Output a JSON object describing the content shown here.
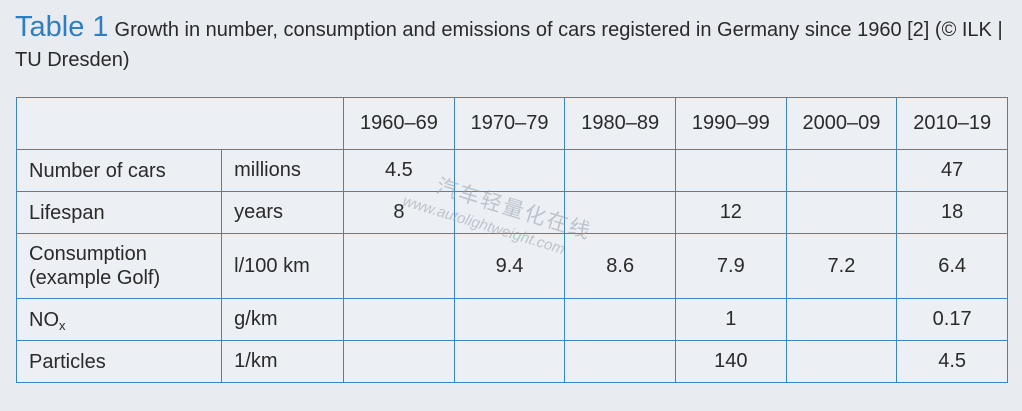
{
  "caption": {
    "label": "Table 1",
    "text": "Growth in number, consumption and emissions of cars registered in Germany since 1960 [2] (© ILK | TU Dresden)"
  },
  "table": {
    "headers": [
      "",
      "",
      "1960–69",
      "1970–79",
      "1980–89",
      "1990–99",
      "2000–09",
      "2010–19"
    ],
    "rows": [
      {
        "label": "Number of cars",
        "unit": "millions",
        "values": [
          "4.5",
          "",
          "",
          "",
          "",
          "47"
        ]
      },
      {
        "label": "Lifespan",
        "unit": "years",
        "values": [
          "8",
          "",
          "",
          "12",
          "",
          "18"
        ]
      },
      {
        "label_line1": "Consumption",
        "label_line2": "(example Golf)",
        "unit": "l/100 km",
        "values": [
          "",
          "9.4",
          "8.6",
          "7.9",
          "7.2",
          "6.4"
        ]
      },
      {
        "label": "NO",
        "label_sub": "x",
        "unit": "g/km",
        "values": [
          "",
          "",
          "",
          "1",
          "",
          "0.17"
        ]
      },
      {
        "label": "Particles",
        "unit": "1/km",
        "values": [
          "",
          "",
          "",
          "140",
          "",
          "4.5"
        ]
      }
    ]
  },
  "watermark": {
    "chinese": "汽车轻量化在线",
    "url": "www.autolightweight.com"
  }
}
